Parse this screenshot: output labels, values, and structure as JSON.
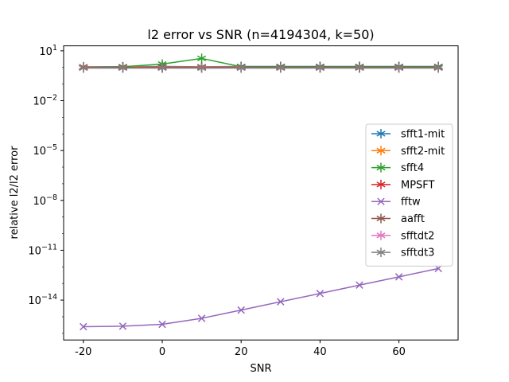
{
  "chart_data": {
    "type": "line",
    "title": "l2 error vs SNR (n=4194304, k=50)",
    "xlabel": "SNR",
    "ylabel": "relative l2/l2 error",
    "yscale": "log",
    "xlim": [
      -25,
      75
    ],
    "ylim_exp": [
      -16.4,
      1.3
    ],
    "xticks": [
      -20,
      0,
      20,
      40,
      60
    ],
    "xtick_labels": [
      "-20",
      "0",
      "20",
      "40",
      "60"
    ],
    "yticks_exp": [
      1,
      -2,
      -5,
      -8,
      -11,
      -14
    ],
    "ytick_labels": [
      {
        "base": "10",
        "exp": "1"
      },
      {
        "base": "10",
        "exp": "−2"
      },
      {
        "base": "10",
        "exp": "−5"
      },
      {
        "base": "10",
        "exp": "−8"
      },
      {
        "base": "10",
        "exp": "−11"
      },
      {
        "base": "10",
        "exp": "−14"
      }
    ],
    "legend_position": "center-right",
    "x": [
      -20,
      -10,
      0,
      10,
      20,
      30,
      40,
      50,
      60,
      70
    ],
    "series": [
      {
        "name": "sfft1-mit",
        "color": "#1f77b4",
        "marker": "star",
        "values": [
          1.1,
          1.1,
          1.15,
          1.1,
          1.15,
          1.15,
          1.15,
          1.15,
          1.15,
          1.15
        ]
      },
      {
        "name": "sfft2-mit",
        "color": "#ff7f0e",
        "marker": "star",
        "values": [
          1.05,
          1.05,
          1.05,
          1.05,
          1.05,
          1.05,
          1.05,
          1.05,
          1.05,
          1.05
        ]
      },
      {
        "name": "sfft4",
        "color": "#2ca02c",
        "marker": "star",
        "values": [
          1.0,
          1.1,
          1.6,
          3.5,
          1.1,
          1.1,
          1.1,
          1.1,
          1.1,
          1.1
        ]
      },
      {
        "name": "MPSFT",
        "color": "#d62728",
        "marker": "star",
        "values": [
          1.0,
          1.0,
          1.0,
          1.0,
          1.0,
          1.0,
          1.0,
          1.0,
          1.0,
          1.0
        ]
      },
      {
        "name": "fftw",
        "color": "#9467bd",
        "marker": "x",
        "values": [
          2.5e-16,
          2.7e-16,
          3.5e-16,
          8e-16,
          2.5e-15,
          8e-15,
          2.5e-14,
          8e-14,
          2.5e-13,
          8e-13
        ]
      },
      {
        "name": "aafft",
        "color": "#8c564b",
        "marker": "star",
        "values": [
          0.95,
          0.95,
          0.95,
          0.95,
          0.95,
          0.95,
          0.95,
          0.95,
          0.95,
          0.95
        ]
      },
      {
        "name": "sfftdt2",
        "color": "#e377c2",
        "marker": "star",
        "values": [
          0.93,
          0.93,
          0.93,
          0.93,
          0.93,
          0.93,
          0.93,
          0.93,
          0.93,
          0.93
        ]
      },
      {
        "name": "sfftdt3",
        "color": "#7f7f7f",
        "marker": "star",
        "values": [
          0.92,
          0.92,
          0.92,
          0.92,
          0.92,
          0.92,
          0.92,
          0.92,
          0.92,
          0.92
        ]
      }
    ]
  }
}
